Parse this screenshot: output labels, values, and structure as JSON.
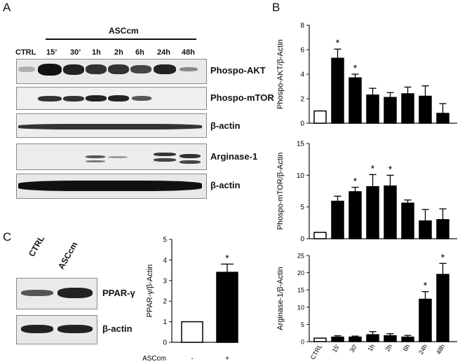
{
  "panels": {
    "A": "A",
    "B": "B",
    "C": "C"
  },
  "panelA": {
    "treatment_label": "ASCcm",
    "lanes": [
      "CTRL",
      "15’",
      "30’",
      "1h",
      "2h",
      "6h",
      "24h",
      "48h"
    ],
    "blots": [
      "Phospo-AKT",
      "Phospo-mTOR",
      "β-actin",
      "Arginase-1",
      "β-actin"
    ]
  },
  "panelC": {
    "lanes": [
      "CTRL",
      "ASCcm"
    ],
    "blots": [
      "PPAR-γ",
      "β-actin"
    ]
  },
  "chart_data": [
    {
      "type": "bar",
      "id": "B-top",
      "ylabel": "Phospo-AKT/β-Actin",
      "ylim": [
        0,
        8
      ],
      "yticks": [
        0,
        2,
        4,
        6,
        8
      ],
      "categories": [
        "CTRL",
        "15'",
        "30'",
        "1h",
        "2h",
        "6h",
        "24h",
        "48h"
      ],
      "values": [
        1.0,
        5.3,
        3.7,
        2.3,
        2.1,
        2.4,
        2.2,
        0.8
      ],
      "errors": [
        0,
        0.75,
        0.3,
        0.55,
        0.4,
        0.55,
        0.85,
        0.8
      ],
      "significant": [
        false,
        true,
        true,
        false,
        false,
        false,
        false,
        false
      ]
    },
    {
      "type": "bar",
      "id": "B-mid",
      "ylabel": "Phospo-mTOR/β-Actin",
      "ylim": [
        0,
        15
      ],
      "yticks": [
        0,
        5,
        10,
        15
      ],
      "categories": [
        "CTRL",
        "15'",
        "30'",
        "1h",
        "2h",
        "6h",
        "24h",
        "48h"
      ],
      "values": [
        1.0,
        5.9,
        7.4,
        8.2,
        8.3,
        5.6,
        2.8,
        3.0
      ],
      "errors": [
        0,
        0.8,
        0.7,
        1.9,
        1.7,
        0.5,
        1.8,
        1.7
      ],
      "significant": [
        false,
        false,
        true,
        true,
        true,
        false,
        false,
        false
      ]
    },
    {
      "type": "bar",
      "id": "B-bot",
      "ylabel": "Arginase-1/β-Actin",
      "ylim": [
        0,
        25
      ],
      "yticks": [
        0,
        5,
        10,
        15,
        20,
        25
      ],
      "categories": [
        "CTRL",
        "15'",
        "30'",
        "1h",
        "2h",
        "6h",
        "24h",
        "48h"
      ],
      "values": [
        1.0,
        1.3,
        1.3,
        2.0,
        1.7,
        1.3,
        12.3,
        19.5
      ],
      "errors": [
        0,
        0.4,
        0.3,
        0.9,
        0.6,
        0.5,
        2.2,
        3.2
      ],
      "significant": [
        false,
        false,
        false,
        false,
        false,
        false,
        true,
        true
      ]
    },
    {
      "type": "bar",
      "id": "C",
      "ylabel": "PPAR-γ/β-Actin",
      "ylim": [
        0,
        5
      ],
      "yticks": [
        0,
        1,
        2,
        3,
        4,
        5
      ],
      "categories": [
        "-",
        "+"
      ],
      "xlabel": "ASCcm",
      "values": [
        1.0,
        3.4
      ],
      "errors": [
        0,
        0.4
      ],
      "significant": [
        false,
        true
      ]
    }
  ],
  "sig_marker": "*"
}
